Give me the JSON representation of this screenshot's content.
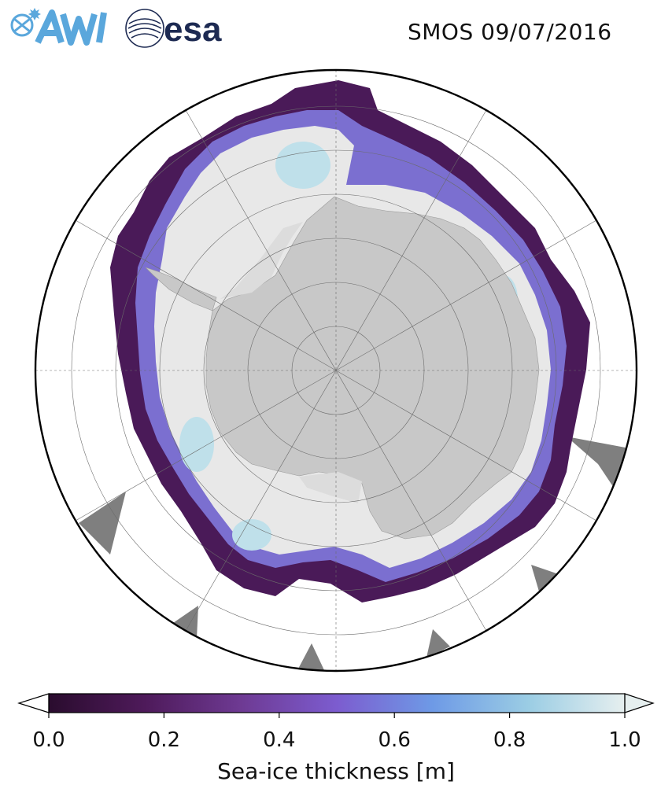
{
  "header": {
    "title": "SMOS 09/07/2016",
    "logos": [
      "AWI",
      "esa"
    ]
  },
  "colorbar": {
    "label": "Sea-ice thickness [m]",
    "min": 0.0,
    "max": 1.0,
    "ticks": [
      "0.0",
      "0.2",
      "0.4",
      "0.6",
      "0.8",
      "1.0"
    ],
    "extend": "both",
    "colors": [
      "#2a0c2e",
      "#4e1a5a",
      "#6e3a93",
      "#7c5ccf",
      "#6e9ae6",
      "#9bcde4",
      "#e6efef"
    ]
  },
  "map": {
    "projection": "south-polar-stereographic",
    "land_color": "#c8c8c8",
    "ice_sheet_color": "#c8c8c8",
    "thick_ice_color": "#e8e8e8",
    "no_data_color": "#7f7f7f",
    "ocean_color": "#ffffff"
  }
}
